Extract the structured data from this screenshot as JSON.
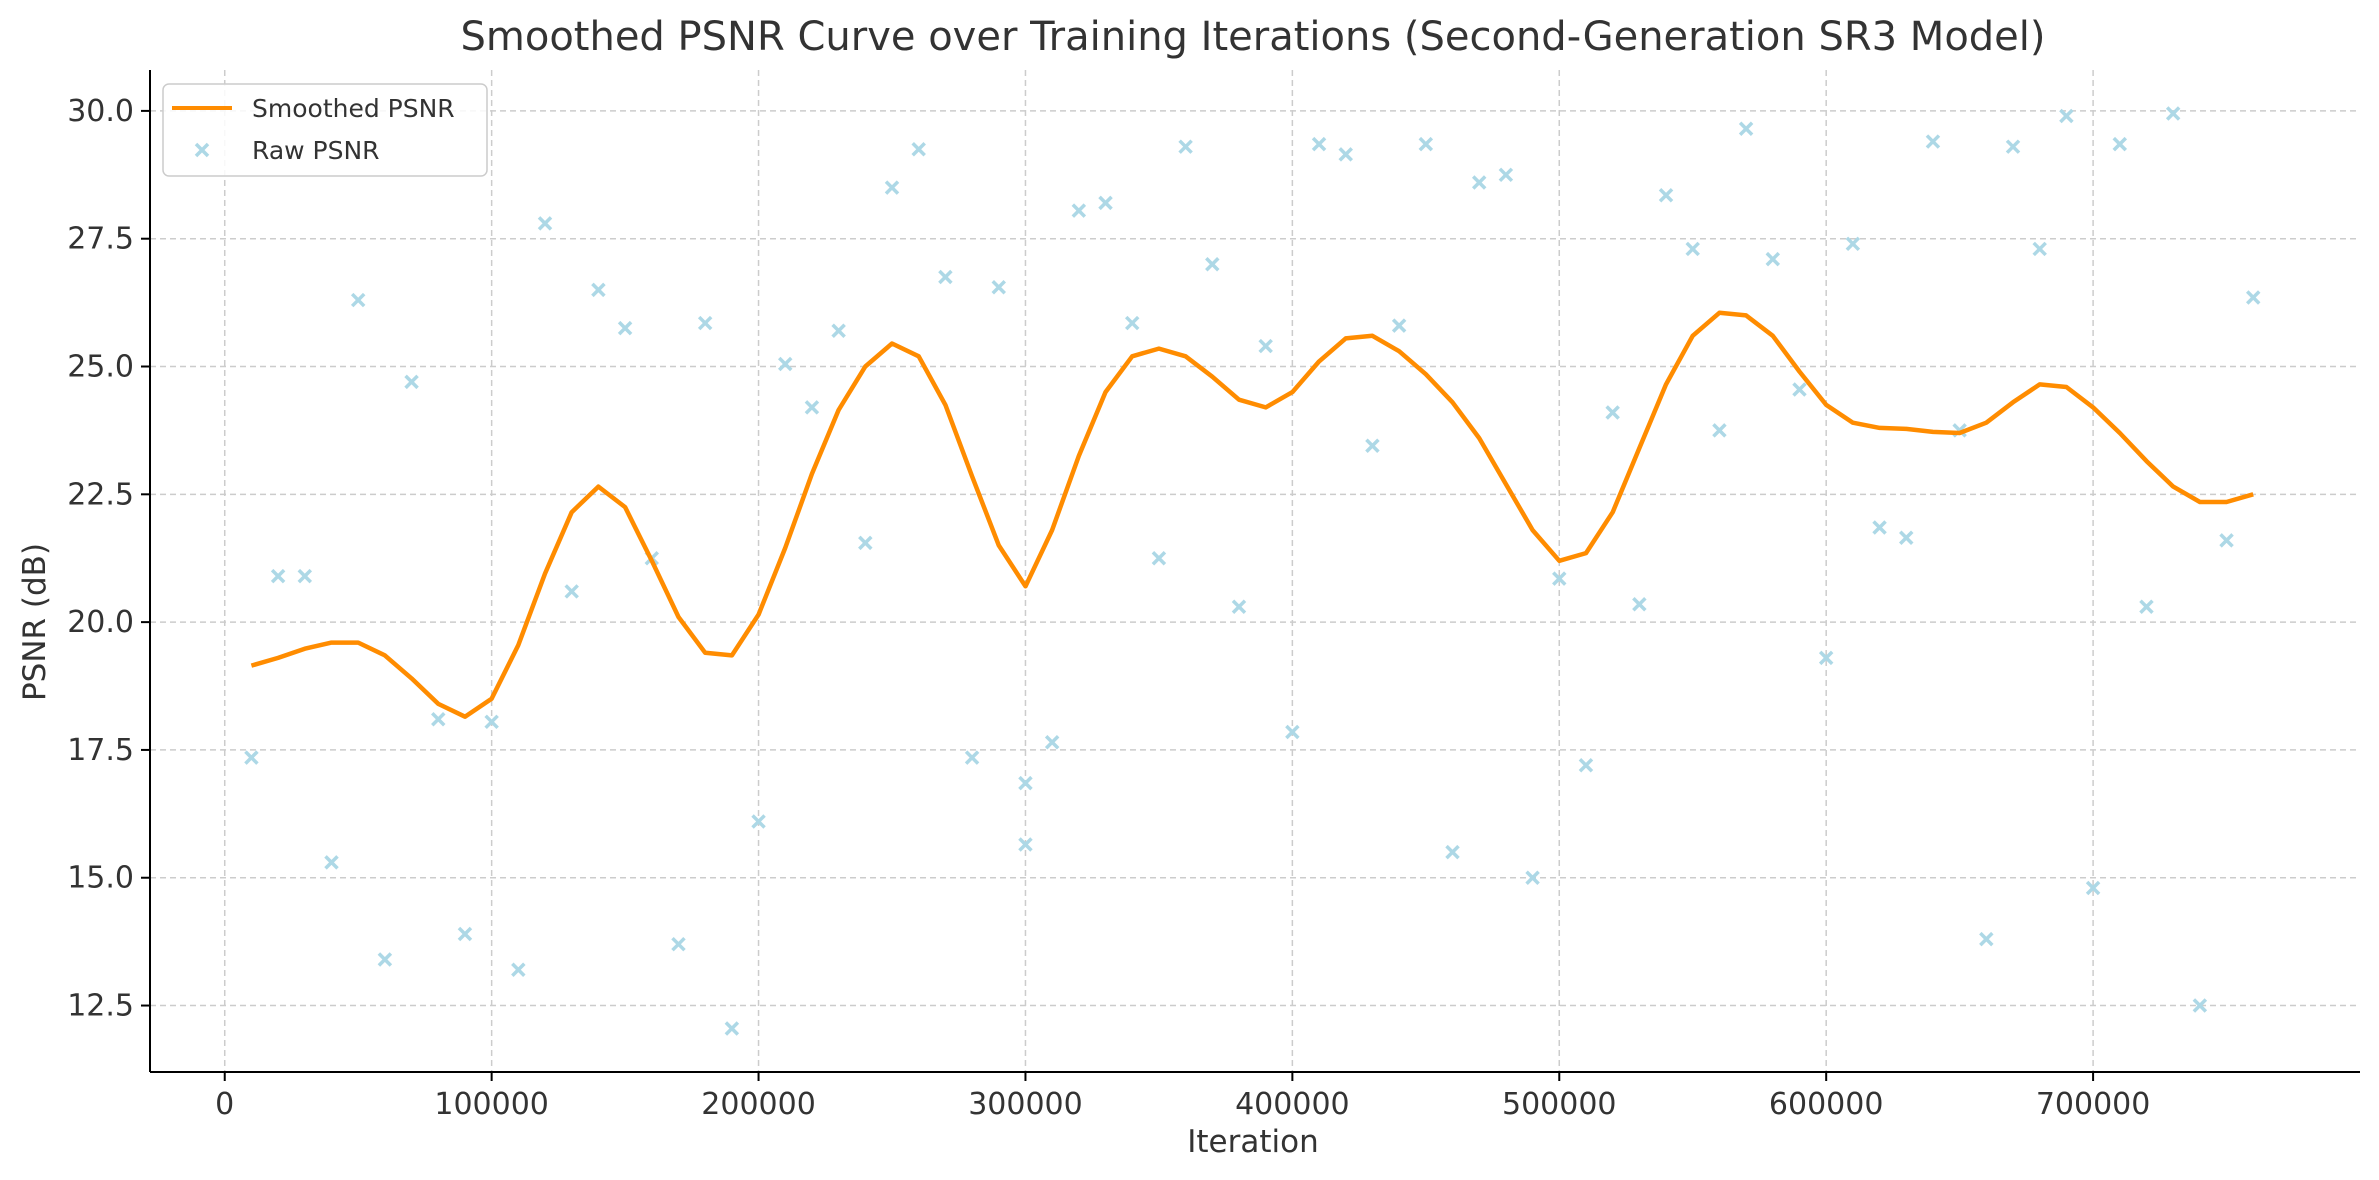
{
  "chart_data": {
    "type": "line",
    "title": "Smoothed PSNR Curve over Training Iterations (Second-Generation SR3 Model)",
    "xlabel": "Iteration",
    "ylabel": "PSNR (dB)",
    "xlim": [
      -28000,
      800000
    ],
    "ylim": [
      11.2,
      30.8
    ],
    "x_ticks": [
      0,
      100000,
      200000,
      300000,
      400000,
      500000,
      600000,
      700000
    ],
    "x_tick_labels": [
      "0",
      "100000",
      "200000",
      "300000",
      "400000",
      "500000",
      "600000",
      "700000"
    ],
    "y_ticks": [
      12.5,
      15.0,
      17.5,
      20.0,
      22.5,
      25.0,
      27.5,
      30.0
    ],
    "y_tick_labels": [
      "12.5",
      "15.0",
      "17.5",
      "20.0",
      "22.5",
      "25.0",
      "27.5",
      "30.0"
    ],
    "grid": true,
    "legend_position": "top-left",
    "colors": {
      "smoothed": "#ff8c00",
      "raw": "#add8e6"
    },
    "series": [
      {
        "name": "Smoothed PSNR",
        "style": "line",
        "x": [
          10000,
          20000,
          30000,
          40000,
          50000,
          60000,
          70000,
          80000,
          90000,
          100000,
          110000,
          120000,
          130000,
          140000,
          150000,
          160000,
          170000,
          180000,
          190000,
          200000,
          210000,
          220000,
          230000,
          240000,
          250000,
          260000,
          270000,
          280000,
          290000,
          300000,
          310000,
          320000,
          330000,
          340000,
          350000,
          360000,
          370000,
          380000,
          390000,
          400000,
          410000,
          420000,
          430000,
          440000,
          450000,
          460000,
          470000,
          480000,
          490000,
          500000,
          510000,
          520000,
          530000,
          540000,
          550000,
          560000,
          570000,
          580000,
          590000,
          600000,
          610000,
          620000,
          630000,
          640000,
          650000,
          660000,
          670000,
          680000,
          690000,
          700000,
          710000,
          720000,
          730000,
          740000,
          750000,
          760000
        ],
        "y": [
          19.15,
          19.3,
          19.48,
          19.6,
          19.6,
          19.35,
          18.9,
          18.4,
          18.15,
          18.5,
          19.55,
          20.95,
          22.15,
          22.65,
          22.25,
          21.2,
          20.1,
          19.4,
          19.35,
          20.15,
          21.45,
          22.9,
          24.15,
          25.0,
          25.45,
          25.2,
          24.25,
          22.85,
          21.5,
          20.7,
          21.8,
          23.25,
          24.5,
          25.2,
          25.35,
          25.2,
          24.8,
          24.35,
          24.2,
          24.5,
          25.1,
          25.55,
          25.6,
          25.3,
          24.85,
          24.3,
          23.6,
          22.7,
          21.8,
          21.2,
          21.35,
          22.15,
          23.4,
          24.65,
          25.6,
          26.05,
          26.0,
          25.6,
          24.9,
          24.25,
          23.9,
          23.8,
          23.78,
          23.72,
          23.7,
          23.9,
          24.3,
          24.65,
          24.6,
          24.2,
          23.7,
          23.15,
          22.65,
          22.35,
          22.35,
          22.5
        ]
      },
      {
        "name": "Raw PSNR",
        "style": "scatter",
        "x": [
          10000,
          20000,
          30000,
          40000,
          50000,
          60000,
          70000,
          80000,
          90000,
          100000,
          110000,
          120000,
          130000,
          140000,
          150000,
          160000,
          170000,
          180000,
          190000,
          200000,
          210000,
          220000,
          230000,
          240000,
          250000,
          260000,
          270000,
          280000,
          290000,
          300000,
          300000,
          310000,
          320000,
          330000,
          340000,
          350000,
          360000,
          370000,
          380000,
          390000,
          400000,
          410000,
          420000,
          430000,
          440000,
          450000,
          460000,
          470000,
          480000,
          490000,
          500000,
          510000,
          520000,
          530000,
          540000,
          550000,
          560000,
          570000,
          580000,
          590000,
          600000,
          610000,
          620000,
          630000,
          640000,
          650000,
          660000,
          670000,
          680000,
          690000,
          700000,
          710000,
          720000,
          730000,
          740000,
          750000,
          760000
        ],
        "y": [
          17.35,
          20.9,
          20.9,
          15.3,
          26.3,
          13.4,
          24.7,
          18.1,
          13.9,
          18.05,
          13.2,
          27.8,
          20.6,
          26.5,
          25.75,
          21.25,
          13.7,
          25.85,
          12.05,
          16.1,
          25.05,
          24.2,
          25.7,
          21.55,
          28.5,
          29.25,
          26.75,
          17.35,
          26.55,
          16.85,
          15.65,
          17.65,
          28.05,
          28.2,
          25.85,
          21.25,
          29.3,
          27.0,
          20.3,
          25.4,
          17.85,
          29.35,
          29.15,
          23.45,
          25.8,
          29.35,
          15.5,
          28.6,
          28.75,
          15.0,
          20.85,
          17.2,
          24.1,
          20.35,
          28.35,
          27.3,
          23.75,
          29.65,
          27.1,
          24.55,
          19.3,
          27.4,
          21.85,
          21.65,
          29.4,
          23.75,
          13.8,
          29.3,
          27.3,
          29.9,
          14.8,
          29.35,
          20.3,
          29.95,
          12.5,
          21.6,
          26.35
        ]
      }
    ]
  }
}
